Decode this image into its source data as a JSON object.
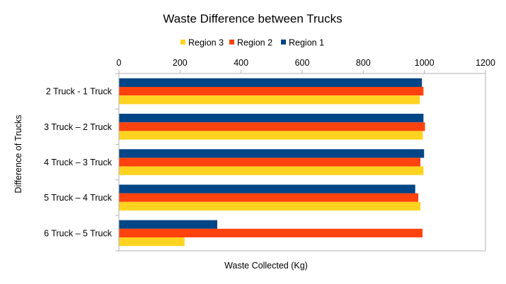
{
  "chart_data": {
    "type": "bar",
    "orientation": "horizontal",
    "title": "Waste Difference between Trucks",
    "xlabel": "Waste Collected (Kg)",
    "ylabel": "Difference of Trucks",
    "xlim": [
      0,
      1200
    ],
    "x_ticks": [
      "0",
      "200",
      "400",
      "600",
      "800",
      "1000",
      "1200"
    ],
    "x_axis_position": "top",
    "grid": false,
    "legend_placement": "top",
    "categories": [
      "2 Truck - 1 Truck",
      "3 Truck – 2  Truck",
      "4 Truck – 3 Truck",
      "5 Truck – 4 Truck",
      "6 Truck – 5 Truck"
    ],
    "legend_order": [
      "Region 3",
      "Region 2",
      "Region 1"
    ],
    "series": [
      {
        "name": "Region 1",
        "color": "#004586",
        "values": [
          992,
          997,
          999,
          970,
          322
        ]
      },
      {
        "name": "Region 2",
        "color": "#ff420e",
        "values": [
          997,
          1002,
          987,
          980,
          994
        ]
      },
      {
        "name": "Region 3",
        "color": "#ffd320",
        "values": [
          985,
          995,
          997,
          987,
          215
        ]
      }
    ]
  }
}
